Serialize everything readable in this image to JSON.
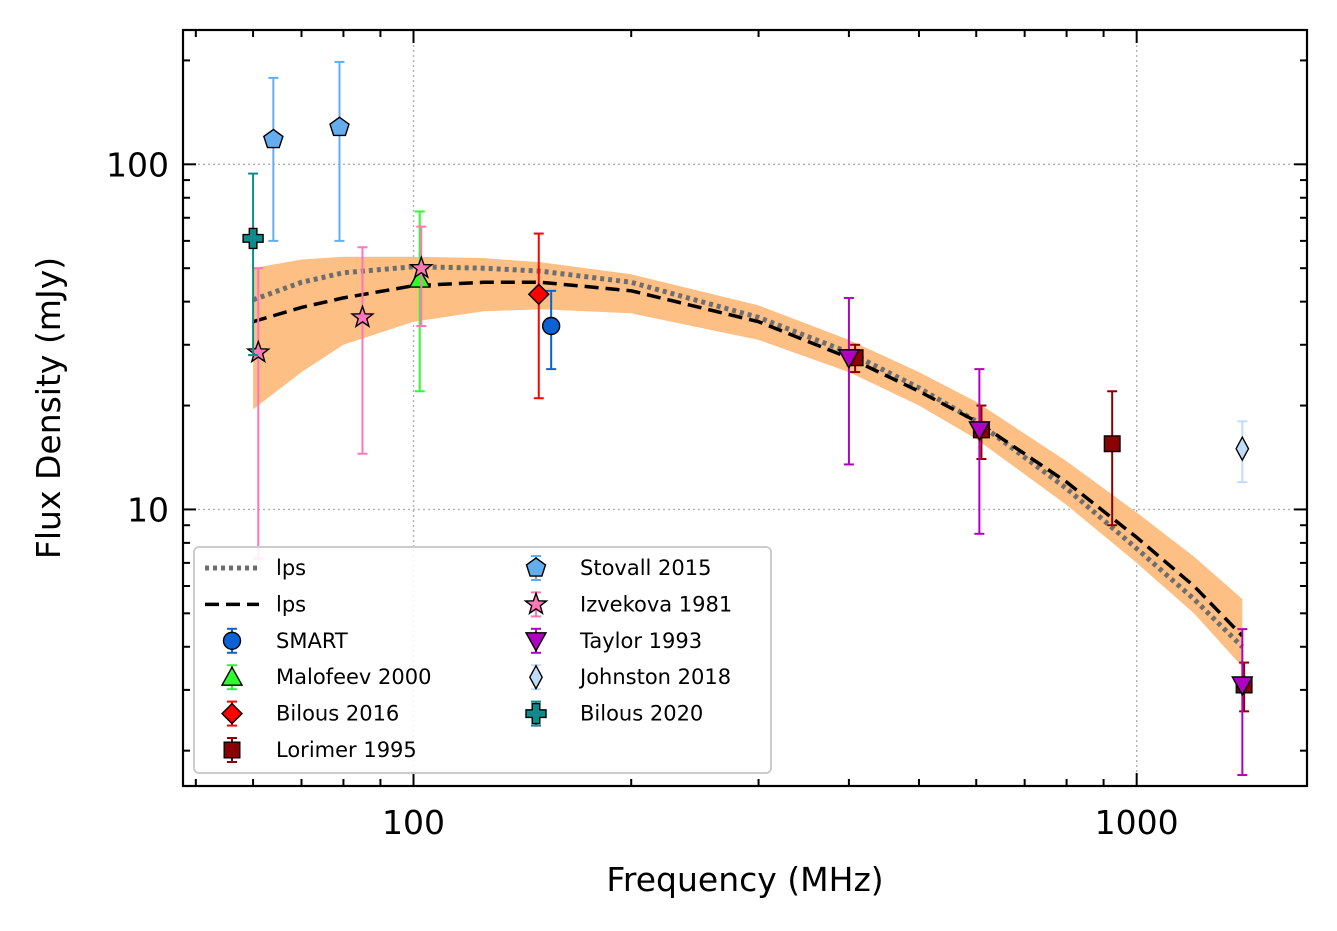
{
  "chart_data": {
    "type": "scatter",
    "title": "",
    "xlabel": "Frequency (MHz)",
    "ylabel": "Flux Density (mJy)",
    "x_scale": "log",
    "y_scale": "log",
    "xlim": [
      48,
      1720
    ],
    "ylim": [
      1.58,
      245
    ],
    "x_ticks": [
      {
        "value": 100,
        "label": "100"
      },
      {
        "value": 1000,
        "label": "1000"
      }
    ],
    "y_ticks": [
      {
        "value": 10,
        "label": "10"
      },
      {
        "value": 100,
        "label": "100"
      }
    ],
    "grid": true,
    "legend_position": "lower-left",
    "fits": [
      {
        "name": "lps",
        "style": "dotted",
        "color": "#6e6e6e",
        "x": [
          60,
          70,
          80,
          100,
          125,
          150,
          200,
          300,
          400,
          500,
          600,
          800,
          1000,
          1200,
          1400
        ],
        "y": [
          40.5,
          45.5,
          48.5,
          50.5,
          50,
          49,
          45.5,
          36,
          28.5,
          22.5,
          18,
          11.5,
          7.7,
          5.5,
          4
        ]
      },
      {
        "name": "lps",
        "style": "dashed",
        "color": "#000000",
        "x": [
          60,
          70,
          80,
          100,
          125,
          150,
          200,
          300,
          400,
          500,
          600,
          800,
          1000,
          1200,
          1400
        ],
        "y": [
          35,
          38.5,
          41,
          44.5,
          45.5,
          45.5,
          43,
          35,
          27.5,
          22,
          18,
          12,
          8.3,
          6,
          4.3
        ]
      }
    ],
    "band": {
      "color": "#fdbf84",
      "x": [
        60,
        70,
        80,
        100,
        125,
        150,
        200,
        300,
        400,
        500,
        600,
        800,
        1000,
        1200,
        1400
      ],
      "upper": [
        50,
        53,
        54,
        54,
        53.5,
        52,
        48,
        39,
        31,
        25,
        20.5,
        13.8,
        9.8,
        7.3,
        5.5
      ],
      "lower": [
        19.5,
        25,
        30,
        35,
        37.5,
        38,
        37,
        31,
        25,
        20,
        16,
        10.3,
        7,
        5,
        3.5
      ]
    },
    "series": [
      {
        "name": "SMART",
        "marker": "circle",
        "color": "#0b62d6",
        "points": [
          {
            "x": 155,
            "y": 34,
            "y_low": 25.5,
            "y_high": 43
          }
        ]
      },
      {
        "name": "Malofeev 2000",
        "marker": "triangle-up",
        "color": "#2bff2b",
        "points": [
          {
            "x": 102,
            "y": 46.5,
            "y_low": 22,
            "y_high": 73
          }
        ]
      },
      {
        "name": "Bilous 2016",
        "marker": "diamond",
        "color": "#ff0000",
        "points": [
          {
            "x": 149,
            "y": 42,
            "y_low": 21,
            "y_high": 63
          }
        ]
      },
      {
        "name": "Lorimer 1995",
        "marker": "square",
        "color": "#8b0000",
        "points": [
          {
            "x": 408,
            "y": 27.5,
            "y_low": 25,
            "y_high": 30
          },
          {
            "x": 610,
            "y": 17,
            "y_low": 14,
            "y_high": 20
          },
          {
            "x": 925,
            "y": 15.5,
            "y_low": 9,
            "y_high": 22
          },
          {
            "x": 1408,
            "y": 3.1,
            "y_low": 2.6,
            "y_high": 3.6
          }
        ]
      },
      {
        "name": "Stovall 2015",
        "marker": "pentagon",
        "color": "#64aeef",
        "points": [
          {
            "x": 64,
            "y": 118,
            "y_low": 60,
            "y_high": 178
          },
          {
            "x": 79,
            "y": 128,
            "y_low": 60,
            "y_high": 198
          }
        ]
      },
      {
        "name": "Izvekova 1981",
        "marker": "star",
        "color": "#ff77b8",
        "points": [
          {
            "x": 61,
            "y": 28.5,
            "y_low": 7.2,
            "y_high": 50
          },
          {
            "x": 85,
            "y": 36,
            "y_low": 14.5,
            "y_high": 57.5
          },
          {
            "x": 102.5,
            "y": 50,
            "y_low": 34,
            "y_high": 66
          }
        ]
      },
      {
        "name": "Taylor 1993",
        "marker": "triangle-down",
        "color": "#b000c0",
        "points": [
          {
            "x": 400,
            "y": 27.5,
            "y_low": 13.5,
            "y_high": 41
          },
          {
            "x": 606,
            "y": 17,
            "y_low": 8.5,
            "y_high": 25.5
          },
          {
            "x": 1400,
            "y": 3.1,
            "y_low": 1.7,
            "y_high": 4.5
          }
        ]
      },
      {
        "name": "Johnston 2018",
        "marker": "thin-diamond",
        "color": "#c0dcf6",
        "points": [
          {
            "x": 1400,
            "y": 15,
            "y_low": 12,
            "y_high": 18
          }
        ]
      },
      {
        "name": "Bilous 2020",
        "marker": "plus",
        "color": "#108a8a",
        "points": [
          {
            "x": 60,
            "y": 61,
            "y_low": 28,
            "y_high": 94
          }
        ]
      }
    ]
  }
}
